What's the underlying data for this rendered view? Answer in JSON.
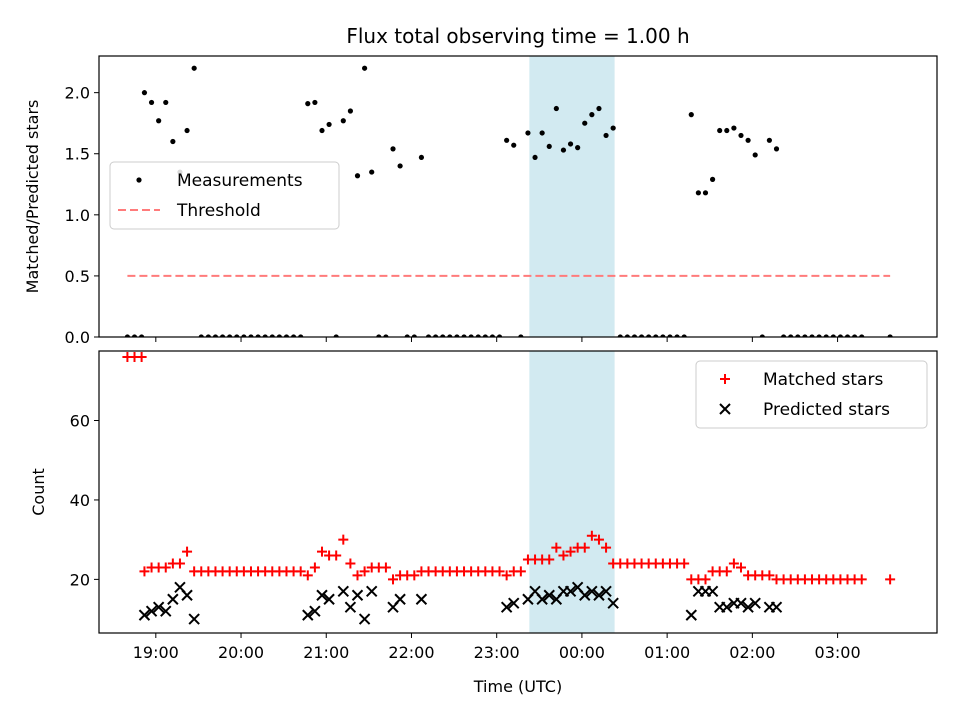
{
  "figure": {
    "title": "Flux total observing time = 1.00 h",
    "xlabel": "Time (UTC)"
  },
  "chart_data": [
    {
      "type": "scatter",
      "ylabel": "Matched/Predicted stars",
      "xlim": [
        "18:20",
        "04:10"
      ],
      "ylim": [
        0,
        2.3
      ],
      "yticks": [
        0.0,
        0.5,
        1.0,
        1.5,
        2.0
      ],
      "ytick_labels": [
        "0.0",
        "0.5",
        "1.0",
        "1.5",
        "2.0"
      ],
      "legend_position": "center-left",
      "shaded_interval": [
        "23:23",
        "00:23"
      ],
      "series": [
        {
          "name": "Measurements",
          "marker": "dot",
          "color": "#000000",
          "points": [
            [
              "18:40",
              0
            ],
            [
              "18:45",
              0
            ],
            [
              "18:50",
              0
            ],
            [
              "18:52",
              2.0
            ],
            [
              "18:57",
              1.92
            ],
            [
              "19:02",
              1.77
            ],
            [
              "19:07",
              1.92
            ],
            [
              "19:12",
              1.6
            ],
            [
              "19:17",
              1.35
            ],
            [
              "19:22",
              1.69
            ],
            [
              "19:27",
              2.2
            ],
            [
              "19:32",
              0
            ],
            [
              "19:37",
              0
            ],
            [
              "19:42",
              0
            ],
            [
              "19:47",
              0
            ],
            [
              "19:52",
              0
            ],
            [
              "19:57",
              0
            ],
            [
              "20:02",
              0
            ],
            [
              "20:07",
              0
            ],
            [
              "20:12",
              0
            ],
            [
              "20:17",
              0
            ],
            [
              "20:22",
              0
            ],
            [
              "20:27",
              0
            ],
            [
              "20:32",
              0
            ],
            [
              "20:37",
              0
            ],
            [
              "20:42",
              0
            ],
            [
              "20:47",
              1.91
            ],
            [
              "20:52",
              1.92
            ],
            [
              "20:57",
              1.69
            ],
            [
              "21:02",
              1.74
            ],
            [
              "21:07",
              0
            ],
            [
              "21:12",
              1.77
            ],
            [
              "21:17",
              1.85
            ],
            [
              "21:22",
              1.32
            ],
            [
              "21:27",
              2.2
            ],
            [
              "21:32",
              1.35
            ],
            [
              "21:37",
              0
            ],
            [
              "21:42",
              0
            ],
            [
              "21:47",
              1.54
            ],
            [
              "21:52",
              1.4
            ],
            [
              "21:57",
              0
            ],
            [
              "22:02",
              0
            ],
            [
              "22:07",
              1.47
            ],
            [
              "22:12",
              0
            ],
            [
              "22:17",
              0
            ],
            [
              "22:22",
              0
            ],
            [
              "22:27",
              0
            ],
            [
              "22:32",
              0
            ],
            [
              "22:37",
              0
            ],
            [
              "22:42",
              0
            ],
            [
              "22:47",
              0
            ],
            [
              "22:52",
              0
            ],
            [
              "22:57",
              0
            ],
            [
              "23:02",
              0
            ],
            [
              "23:07",
              1.61
            ],
            [
              "23:12",
              1.57
            ],
            [
              "23:17",
              0
            ],
            [
              "23:22",
              1.67
            ],
            [
              "23:27",
              1.47
            ],
            [
              "23:32",
              1.67
            ],
            [
              "23:37",
              1.56
            ],
            [
              "23:42",
              1.87
            ],
            [
              "23:47",
              1.53
            ],
            [
              "23:52",
              1.58
            ],
            [
              "23:57",
              1.55
            ],
            [
              "00:02",
              1.75
            ],
            [
              "00:07",
              1.82
            ],
            [
              "00:12",
              1.87
            ],
            [
              "00:17",
              1.65
            ],
            [
              "00:22",
              1.71
            ],
            [
              "00:27",
              0
            ],
            [
              "00:32",
              0
            ],
            [
              "00:37",
              0
            ],
            [
              "00:42",
              0
            ],
            [
              "00:47",
              0
            ],
            [
              "00:52",
              0
            ],
            [
              "00:57",
              0
            ],
            [
              "01:02",
              0
            ],
            [
              "01:07",
              0
            ],
            [
              "01:12",
              0
            ],
            [
              "01:17",
              1.82
            ],
            [
              "01:22",
              1.18
            ],
            [
              "01:27",
              1.18
            ],
            [
              "01:32",
              1.29
            ],
            [
              "01:37",
              1.69
            ],
            [
              "01:42",
              1.69
            ],
            [
              "01:47",
              1.71
            ],
            [
              "01:52",
              1.65
            ],
            [
              "01:57",
              1.61
            ],
            [
              "02:02",
              1.49
            ],
            [
              "02:07",
              0
            ],
            [
              "02:12",
              1.61
            ],
            [
              "02:17",
              1.54
            ],
            [
              "02:22",
              0
            ],
            [
              "02:27",
              0
            ],
            [
              "02:32",
              0
            ],
            [
              "02:37",
              0
            ],
            [
              "02:42",
              0
            ],
            [
              "02:47",
              0
            ],
            [
              "02:52",
              0
            ],
            [
              "02:57",
              0
            ],
            [
              "03:02",
              0
            ],
            [
              "03:07",
              0
            ],
            [
              "03:12",
              0
            ],
            [
              "03:17",
              0
            ],
            [
              "03:37",
              0
            ]
          ]
        },
        {
          "name": "Threshold",
          "marker": "dashed-line",
          "color": "#ff7b7b",
          "points": [
            [
              "18:40",
              0.5
            ],
            [
              "03:37",
              0.5
            ]
          ]
        }
      ]
    },
    {
      "type": "scatter",
      "ylabel": "Count",
      "xlim": [
        "18:20",
        "04:10"
      ],
      "ylim": [
        6.5,
        77.5
      ],
      "yticks": [
        20,
        40,
        60
      ],
      "ytick_labels": [
        "20",
        "40",
        "60"
      ],
      "xticks": [
        "19:00",
        "20:00",
        "21:00",
        "22:00",
        "23:00",
        "00:00",
        "01:00",
        "02:00",
        "03:00"
      ],
      "legend_position": "top-right",
      "shaded_interval": [
        "23:23",
        "00:23"
      ],
      "series": [
        {
          "name": "Matched stars",
          "marker": "plus",
          "color": "#ff0000",
          "points": [
            [
              "18:40",
              76
            ],
            [
              "18:45",
              76
            ],
            [
              "18:50",
              76
            ],
            [
              "18:52",
              22
            ],
            [
              "18:57",
              23
            ],
            [
              "19:02",
              23
            ],
            [
              "19:07",
              23
            ],
            [
              "19:12",
              24
            ],
            [
              "19:17",
              24
            ],
            [
              "19:22",
              27
            ],
            [
              "19:27",
              22
            ],
            [
              "19:32",
              22
            ],
            [
              "19:37",
              22
            ],
            [
              "19:42",
              22
            ],
            [
              "19:47",
              22
            ],
            [
              "19:52",
              22
            ],
            [
              "19:57",
              22
            ],
            [
              "20:02",
              22
            ],
            [
              "20:07",
              22
            ],
            [
              "20:12",
              22
            ],
            [
              "20:17",
              22
            ],
            [
              "20:22",
              22
            ],
            [
              "20:27",
              22
            ],
            [
              "20:32",
              22
            ],
            [
              "20:37",
              22
            ],
            [
              "20:42",
              22
            ],
            [
              "20:47",
              21
            ],
            [
              "20:52",
              23
            ],
            [
              "20:57",
              27
            ],
            [
              "21:02",
              26
            ],
            [
              "21:07",
              26
            ],
            [
              "21:12",
              30
            ],
            [
              "21:17",
              24
            ],
            [
              "21:22",
              21
            ],
            [
              "21:27",
              22
            ],
            [
              "21:32",
              23
            ],
            [
              "21:37",
              23
            ],
            [
              "21:42",
              23
            ],
            [
              "21:47",
              20
            ],
            [
              "21:52",
              21
            ],
            [
              "21:57",
              21
            ],
            [
              "22:02",
              21
            ],
            [
              "22:07",
              22
            ],
            [
              "22:12",
              22
            ],
            [
              "22:17",
              22
            ],
            [
              "22:22",
              22
            ],
            [
              "22:27",
              22
            ],
            [
              "22:32",
              22
            ],
            [
              "22:37",
              22
            ],
            [
              "22:42",
              22
            ],
            [
              "22:47",
              22
            ],
            [
              "22:52",
              22
            ],
            [
              "22:57",
              22
            ],
            [
              "23:02",
              22
            ],
            [
              "23:07",
              21
            ],
            [
              "23:12",
              22
            ],
            [
              "23:17",
              22
            ],
            [
              "23:22",
              25
            ],
            [
              "23:27",
              25
            ],
            [
              "23:32",
              25
            ],
            [
              "23:37",
              25
            ],
            [
              "23:42",
              28
            ],
            [
              "23:47",
              26
            ],
            [
              "23:52",
              27
            ],
            [
              "23:57",
              28
            ],
            [
              "00:02",
              28
            ],
            [
              "00:07",
              31
            ],
            [
              "00:12",
              30
            ],
            [
              "00:17",
              28
            ],
            [
              "00:22",
              24
            ],
            [
              "00:27",
              24
            ],
            [
              "00:32",
              24
            ],
            [
              "00:37",
              24
            ],
            [
              "00:42",
              24
            ],
            [
              "00:47",
              24
            ],
            [
              "00:52",
              24
            ],
            [
              "00:57",
              24
            ],
            [
              "01:02",
              24
            ],
            [
              "01:07",
              24
            ],
            [
              "01:12",
              24
            ],
            [
              "01:17",
              20
            ],
            [
              "01:22",
              20
            ],
            [
              "01:27",
              20
            ],
            [
              "01:32",
              22
            ],
            [
              "01:37",
              22
            ],
            [
              "01:42",
              22
            ],
            [
              "01:47",
              24
            ],
            [
              "01:52",
              23
            ],
            [
              "01:57",
              21
            ],
            [
              "02:02",
              21
            ],
            [
              "02:07",
              21
            ],
            [
              "02:12",
              21
            ],
            [
              "02:17",
              20
            ],
            [
              "02:22",
              20
            ],
            [
              "02:27",
              20
            ],
            [
              "02:32",
              20
            ],
            [
              "02:37",
              20
            ],
            [
              "02:42",
              20
            ],
            [
              "02:47",
              20
            ],
            [
              "02:52",
              20
            ],
            [
              "02:57",
              20
            ],
            [
              "03:02",
              20
            ],
            [
              "03:07",
              20
            ],
            [
              "03:12",
              20
            ],
            [
              "03:17",
              20
            ],
            [
              "03:37",
              20
            ]
          ]
        },
        {
          "name": "Predicted stars",
          "marker": "x",
          "color": "#000000",
          "points": [
            [
              "18:52",
              11
            ],
            [
              "18:57",
              12
            ],
            [
              "19:02",
              13
            ],
            [
              "19:07",
              12
            ],
            [
              "19:12",
              15
            ],
            [
              "19:17",
              18
            ],
            [
              "19:22",
              16
            ],
            [
              "19:27",
              10
            ],
            [
              "20:47",
              11
            ],
            [
              "20:52",
              12
            ],
            [
              "20:57",
              16
            ],
            [
              "21:02",
              15
            ],
            [
              "21:12",
              17
            ],
            [
              "21:17",
              13
            ],
            [
              "21:22",
              16
            ],
            [
              "21:27",
              10
            ],
            [
              "21:32",
              17
            ],
            [
              "21:47",
              13
            ],
            [
              "21:52",
              15
            ],
            [
              "22:07",
              15
            ],
            [
              "23:07",
              13
            ],
            [
              "23:12",
              14
            ],
            [
              "23:22",
              15
            ],
            [
              "23:27",
              17
            ],
            [
              "23:32",
              15
            ],
            [
              "23:37",
              16
            ],
            [
              "23:42",
              15
            ],
            [
              "23:47",
              17
            ],
            [
              "23:52",
              17
            ],
            [
              "23:57",
              18
            ],
            [
              "00:02",
              16
            ],
            [
              "00:07",
              17
            ],
            [
              "00:12",
              16
            ],
            [
              "00:17",
              17
            ],
            [
              "00:22",
              14
            ],
            [
              "01:17",
              11
            ],
            [
              "01:22",
              17
            ],
            [
              "01:27",
              17
            ],
            [
              "01:32",
              17
            ],
            [
              "01:37",
              13
            ],
            [
              "01:42",
              13
            ],
            [
              "01:47",
              14
            ],
            [
              "01:52",
              14
            ],
            [
              "01:57",
              13
            ],
            [
              "02:02",
              14
            ],
            [
              "02:12",
              13
            ],
            [
              "02:17",
              13
            ]
          ]
        }
      ]
    }
  ]
}
